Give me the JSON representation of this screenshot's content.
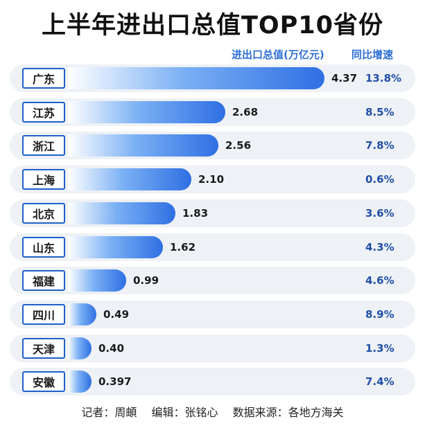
{
  "title": "上半年进出口总值TOP10省份",
  "header": {
    "value_label": "进出口总值(万亿元)",
    "growth_label": "同比增速"
  },
  "chart_data": {
    "type": "bar",
    "orientation": "horizontal",
    "title": "上半年进出口总值TOP10省份",
    "categories": [
      "广东",
      "江苏",
      "浙江",
      "上海",
      "北京",
      "山东",
      "福建",
      "四川",
      "天津",
      "安徽"
    ],
    "series": [
      {
        "name": "进出口总值(万亿元)",
        "values": [
          4.37,
          2.68,
          2.56,
          2.1,
          1.83,
          1.62,
          0.99,
          0.49,
          0.4,
          0.397
        ]
      },
      {
        "name": "同比增速",
        "values": [
          "13.8%",
          "8.5%",
          "7.8%",
          "0.6%",
          "3.6%",
          "4.3%",
          "4.6%",
          "8.9%",
          "1.3%",
          "7.4%"
        ]
      }
    ],
    "value_labels": [
      "4.37",
      "2.68",
      "2.56",
      "2.10",
      "1.83",
      "1.62",
      "0.99",
      "0.49",
      "0.40",
      "0.397"
    ],
    "xlim": [
      0,
      4.37
    ],
    "grid": false,
    "colors": {
      "bar_end": "#2f6fe3",
      "bar_start": "#ffffff",
      "accent": "#1f5fc8"
    }
  },
  "footer": {
    "reporter": "记者：周頔",
    "editor": "编辑：张铭心",
    "source": "数据来源：各地方海关"
  }
}
